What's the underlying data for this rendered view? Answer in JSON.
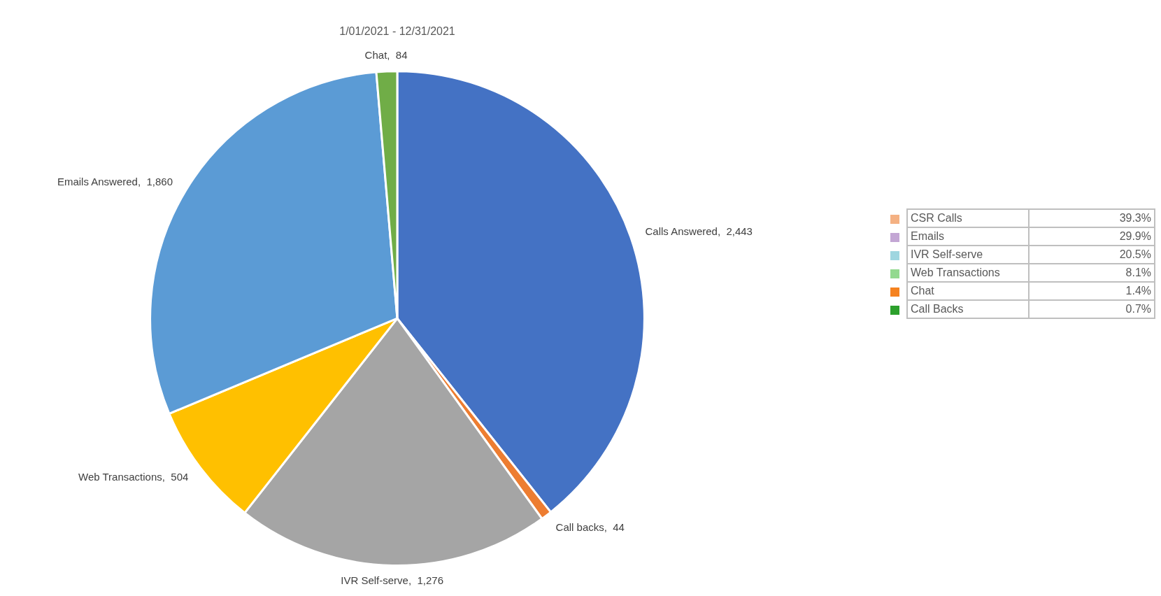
{
  "chart_data": [
    {
      "type": "pie",
      "title": "1/01/2021 - 12/31/2021",
      "categories": [
        "Calls Answered",
        "Call backs",
        "IVR Self-serve",
        "Web Transactions",
        "Emails Answered",
        "Chat"
      ],
      "values": [
        2443,
        44,
        1276,
        504,
        1860,
        84
      ],
      "value_labels": [
        "2,443",
        "44",
        "1,276",
        "504",
        "1,860",
        "84"
      ],
      "colors": [
        "#4472c4",
        "#ed7d31",
        "#a5a5a5",
        "#ffc000",
        "#5b9bd5",
        "#70ad47"
      ],
      "legend": false
    },
    {
      "type": "other",
      "categories": [
        "CSR Calls",
        "Emails",
        "IVR Self-serve",
        "Web Transactions",
        "Chat",
        "Call Backs"
      ],
      "values": [
        39.3,
        29.9,
        20.5,
        8.1,
        1.4,
        0.7
      ],
      "value_labels": [
        "39.3%",
        "29.9%",
        "20.5%",
        "8.1%",
        "1.4%",
        "0.7%"
      ],
      "colors": [
        "#f4b183",
        "#c3a6d4",
        "#9fd6e0",
        "#93d98f",
        "#f5821f",
        "#2ca02c"
      ]
    }
  ]
}
